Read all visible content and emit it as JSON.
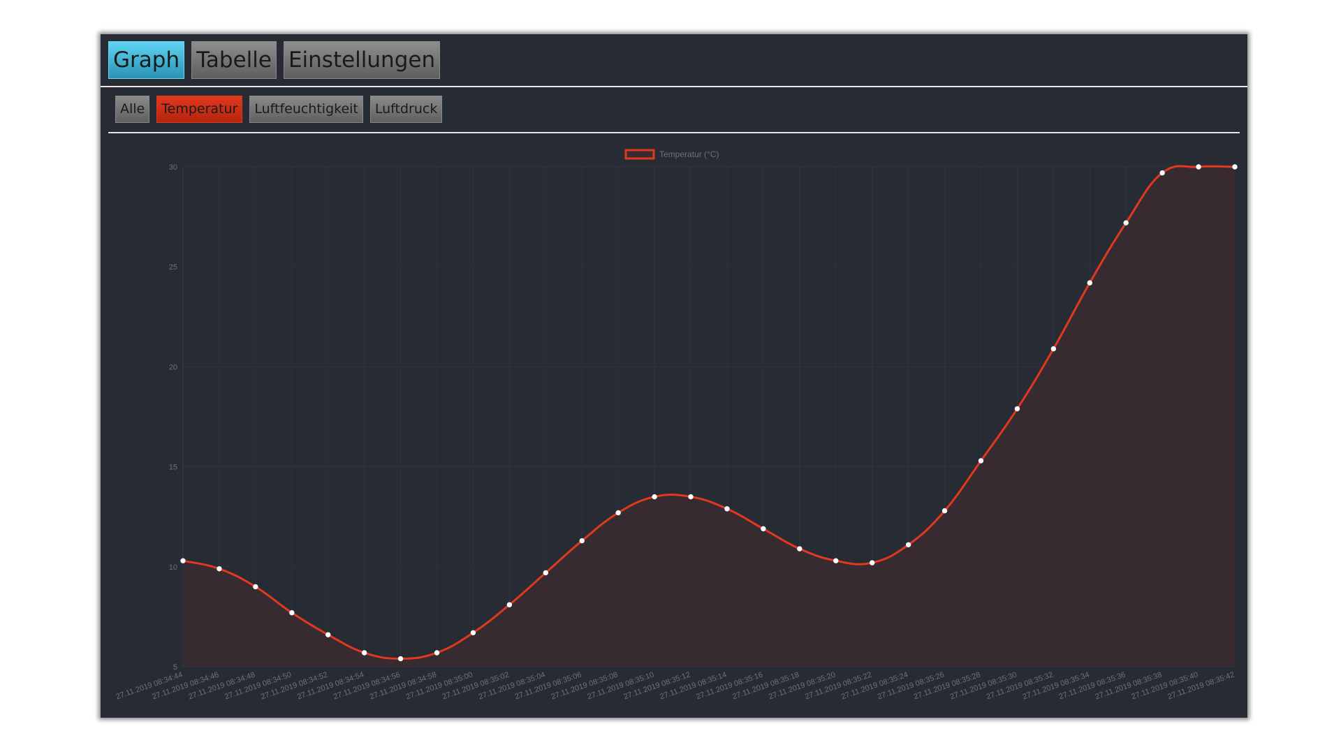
{
  "tabs": {
    "main": [
      {
        "label": "Graph",
        "active": true
      },
      {
        "label": "Tabelle",
        "active": false
      },
      {
        "label": "Einstellungen",
        "active": false
      }
    ],
    "sub": [
      {
        "label": "Alle",
        "active": false
      },
      {
        "label": "Temperatur",
        "active": true
      },
      {
        "label": "Luftfeuchtigkeit",
        "active": false
      },
      {
        "label": "Luftdruck",
        "active": false
      }
    ]
  },
  "colors": {
    "accent_active_main": "#40b8dc",
    "accent_temperature": "#e0391d",
    "panel_background": "#272b34",
    "area_fill": "#382a31"
  },
  "chart_data": {
    "type": "line",
    "fill": true,
    "legend_position": "top",
    "grid": true,
    "series": [
      {
        "name": "Temperatur (°C)",
        "color": "#e0391d",
        "values": [
          10.3,
          9.9,
          9.0,
          7.7,
          6.6,
          5.7,
          5.4,
          5.7,
          6.7,
          8.1,
          9.7,
          11.3,
          12.7,
          13.5,
          13.5,
          12.9,
          11.9,
          10.9,
          10.3,
          10.2,
          11.1,
          12.8,
          15.3,
          17.9,
          20.9,
          24.2,
          27.2,
          29.7,
          30.0,
          30.0
        ]
      }
    ],
    "categories": [
      "27.11.2019 08:34:44",
      "27.11.2019 08:34:46",
      "27.11.2019 08:34:48",
      "27.11.2019 08:34:50",
      "27.11.2019 08:34:52",
      "27.11.2019 08:34:54",
      "27.11.2019 08:34:56",
      "27.11.2019 08:34:58",
      "27.11.2019 08:35:00",
      "27.11.2019 08:35:02",
      "27.11.2019 08:35:04",
      "27.11.2019 08:35:06",
      "27.11.2019 08:35:08",
      "27.11.2019 08:35:10",
      "27.11.2019 08:35:12",
      "27.11.2019 08:35:14",
      "27.11.2019 08:35:16",
      "27.11.2019 08:35:18",
      "27.11.2019 08:35:20",
      "27.11.2019 08:35:22",
      "27.11.2019 08:35:24",
      "27.11.2019 08:35:26",
      "27.11.2019 08:35:28",
      "27.11.2019 08:35:30",
      "27.11.2019 08:35:32",
      "27.11.2019 08:35:34",
      "27.11.2019 08:35:36",
      "27.11.2019 08:35:38",
      "27.11.2019 08:35:40",
      "27.11.2019 08:35:42"
    ],
    "ylim": [
      5,
      30
    ],
    "yticks": [
      5,
      10,
      15,
      20,
      25,
      30
    ]
  }
}
